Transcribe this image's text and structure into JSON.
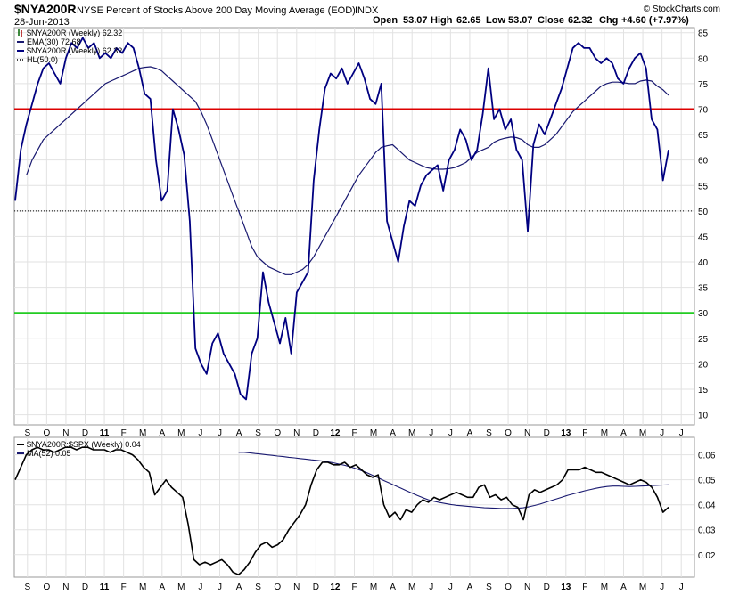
{
  "header": {
    "symbol": "$NYA200R",
    "description": "NYSE Percent of Stocks Above 200 Day Moving Average (EOD)",
    "exchange": "INDX",
    "date": "28-Jun-2013",
    "ohlc": {
      "open_label": "Open",
      "open": "53.07",
      "high_label": "High",
      "high": "62.65",
      "low_label": "Low",
      "low": "53.07",
      "close_label": "Close",
      "close": "62.32",
      "chg_label": "Chg",
      "chg": "+4.60 (+7.97%)"
    },
    "watermark": "© StockCharts.com",
    "chg_color": "#008000"
  },
  "legend_top": [
    {
      "text": "$NYA200R (Weekly) 62.32",
      "color": "#006400",
      "style": "bar"
    },
    {
      "text": "EMA(30) 72.68",
      "color": "#191970",
      "style": "line"
    },
    {
      "text": "$NYA200R (Weekly) 62.32",
      "color": "#000080",
      "style": "line"
    },
    {
      "text": "HL(50.0)",
      "color": "#000000",
      "style": "dots"
    }
  ],
  "legend_bottom": [
    {
      "text": "$NYA200R:$SPX (Weekly) 0.04",
      "color": "#000000"
    },
    {
      "text": "MA(52) 0.05",
      "color": "#191970"
    }
  ],
  "x_ticks": [
    "S",
    "O",
    "N",
    "D",
    "11",
    "F",
    "M",
    "A",
    "M",
    "J",
    "J",
    "A",
    "S",
    "O",
    "N",
    "D",
    "12",
    "F",
    "M",
    "A",
    "M",
    "J",
    "J",
    "A",
    "S",
    "O",
    "N",
    "D",
    "13",
    "F",
    "M",
    "A",
    "M",
    "J",
    "J"
  ],
  "x_bold_ticks": [
    "11",
    "12",
    "13"
  ],
  "chart_data": [
    {
      "type": "line",
      "panel": "price",
      "y_ticks": [
        10,
        15,
        20,
        25,
        30,
        35,
        40,
        45,
        50,
        55,
        60,
        65,
        70,
        75,
        80,
        85
      ],
      "ylim": [
        8,
        86
      ],
      "horizontal_lines": [
        {
          "value": 70,
          "color": "#dd0000"
        },
        {
          "value": 30,
          "color": "#22cc22"
        },
        {
          "value": 50,
          "color": "#000000",
          "dotted": true
        }
      ],
      "series": [
        {
          "name": "$NYA200R (Weekly)",
          "color": "#000080",
          "values": [
            52,
            62,
            67,
            71,
            75,
            78,
            79,
            77,
            75,
            80,
            83,
            82,
            84,
            82,
            83,
            80,
            81,
            80,
            82,
            81,
            83,
            82,
            78,
            73,
            72,
            60,
            52,
            54,
            70,
            66,
            61,
            48,
            23,
            20,
            18,
            24,
            26,
            22,
            20,
            18,
            14,
            13,
            22,
            25,
            38,
            32,
            28,
            24,
            29,
            22,
            34,
            36,
            38,
            56,
            66,
            74,
            77,
            76,
            78,
            75,
            77,
            79,
            76,
            72,
            71,
            75,
            48,
            44,
            40,
            47,
            52,
            51,
            55,
            57,
            58,
            59,
            54,
            60,
            62,
            66,
            64,
            60,
            62,
            69,
            78,
            68,
            70,
            66,
            68,
            62,
            60,
            46,
            63,
            67,
            65,
            68,
            71,
            74,
            78,
            82,
            83,
            82,
            82,
            80,
            79,
            80,
            79,
            76,
            75,
            78,
            80,
            81,
            78,
            68,
            66,
            56,
            62
          ],
          "end_value": 62.32
        },
        {
          "name": "EMA(30)",
          "color": "#191970",
          "values": [
            57,
            60,
            62,
            64,
            65,
            66,
            67,
            68,
            69,
            70,
            71,
            72,
            73,
            74,
            75,
            75.5,
            76,
            76.5,
            77,
            77.5,
            78,
            78.2,
            78.3,
            78,
            77.5,
            76.5,
            75.5,
            74.5,
            73.5,
            72.5,
            71.5,
            69.5,
            67,
            64,
            61,
            58,
            55,
            52,
            49,
            46,
            43,
            41,
            40,
            39,
            38.5,
            38,
            37.5,
            37.5,
            38,
            38.5,
            39.5,
            41,
            43,
            45,
            47,
            49,
            51,
            53,
            55,
            57,
            58.5,
            60,
            61.5,
            62.5,
            62.8,
            63,
            62,
            61,
            60,
            59.5,
            59,
            58.5,
            58.3,
            58.2,
            58.2,
            58.3,
            58.5,
            59,
            59.5,
            60.5,
            61.5,
            62,
            62.5,
            63.5,
            64,
            64.3,
            64.5,
            64.4,
            64,
            63,
            62.5,
            62.5,
            63,
            64,
            65,
            66.5,
            68,
            69.5,
            70.5,
            71.5,
            72.5,
            73.5,
            74.5,
            75,
            75.3,
            75.3,
            75.2,
            75,
            75,
            75.5,
            75.7,
            75.5,
            74.5,
            73.8,
            72.7
          ],
          "end_value": 72.68
        }
      ]
    },
    {
      "type": "line",
      "panel": "ratio",
      "y_ticks": [
        0.02,
        0.03,
        0.04,
        0.05,
        0.06
      ],
      "ylim": [
        0.011,
        0.067
      ],
      "series": [
        {
          "name": "$NYA200R:$SPX (Weekly)",
          "color": "#000000",
          "values": [
            0.05,
            0.055,
            0.06,
            0.062,
            0.063,
            0.062,
            0.062,
            0.061,
            0.062,
            0.063,
            0.063,
            0.062,
            0.063,
            0.063,
            0.062,
            0.062,
            0.062,
            0.061,
            0.062,
            0.062,
            0.061,
            0.06,
            0.058,
            0.055,
            0.053,
            0.044,
            0.047,
            0.05,
            0.047,
            0.045,
            0.043,
            0.032,
            0.018,
            0.016,
            0.017,
            0.016,
            0.017,
            0.018,
            0.016,
            0.013,
            0.012,
            0.014,
            0.017,
            0.021,
            0.024,
            0.025,
            0.023,
            0.024,
            0.026,
            0.03,
            0.033,
            0.036,
            0.04,
            0.048,
            0.054,
            0.057,
            0.057,
            0.056,
            0.056,
            0.057,
            0.055,
            0.056,
            0.054,
            0.052,
            0.051,
            0.052,
            0.04,
            0.035,
            0.037,
            0.034,
            0.038,
            0.037,
            0.04,
            0.042,
            0.041,
            0.043,
            0.042,
            0.043,
            0.044,
            0.045,
            0.044,
            0.043,
            0.043,
            0.047,
            0.048,
            0.043,
            0.044,
            0.042,
            0.043,
            0.04,
            0.039,
            0.034,
            0.044,
            0.046,
            0.045,
            0.046,
            0.047,
            0.048,
            0.05,
            0.054,
            0.054,
            0.054,
            0.055,
            0.054,
            0.053,
            0.053,
            0.052,
            0.051,
            0.05,
            0.049,
            0.048,
            0.049,
            0.05,
            0.049,
            0.047,
            0.043,
            0.037,
            0.039
          ],
          "end_value": 0.04
        },
        {
          "name": "MA(52)",
          "color": "#191970",
          "values": [
            0.061,
            0.061,
            0.0608,
            0.0605,
            0.0603,
            0.06,
            0.0598,
            0.0595,
            0.0593,
            0.059,
            0.0588,
            0.0585,
            0.0583,
            0.058,
            0.0578,
            0.0575,
            0.0572,
            0.0568,
            0.0563,
            0.0558,
            0.0552,
            0.0545,
            0.0537,
            0.0528,
            0.0518,
            0.0508,
            0.0497,
            0.0487,
            0.0477,
            0.0467,
            0.0457,
            0.0447,
            0.0437,
            0.0428,
            0.042,
            0.0414,
            0.0409,
            0.0405,
            0.0401,
            0.0398,
            0.0396,
            0.0394,
            0.0392,
            0.039,
            0.0388,
            0.0387,
            0.0386,
            0.0385,
            0.0385,
            0.0385,
            0.0386,
            0.0388,
            0.0392,
            0.0397,
            0.0403,
            0.041,
            0.0417,
            0.0424,
            0.0431,
            0.0438,
            0.0444,
            0.045,
            0.0456,
            0.0461,
            0.0466,
            0.047,
            0.0473,
            0.0475,
            0.0475,
            0.0474,
            0.0473,
            0.0474,
            0.0475,
            0.0476,
            0.0477,
            0.0478,
            0.0479,
            0.048
          ],
          "end_value": 0.05
        }
      ]
    }
  ]
}
